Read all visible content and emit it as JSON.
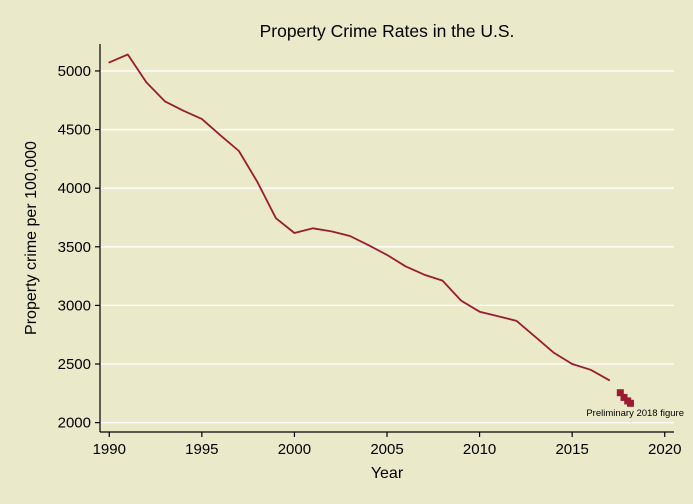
{
  "chart_data": {
    "type": "line",
    "title": "Property Crime Rates in the U.S.",
    "xlabel": "Year",
    "ylabel": "Property crime per 100,000",
    "xlim": [
      1989.5,
      2020.5
    ],
    "ylim": [
      1920,
      5230
    ],
    "xticks": [
      1990,
      1995,
      2000,
      2005,
      2010,
      2015,
      2020
    ],
    "yticks": [
      2000,
      2500,
      3000,
      3500,
      4000,
      4500,
      5000
    ],
    "grid": "horizontal",
    "legend": "none",
    "colors": {
      "background": "#eaeaca",
      "series": "#9b1b30",
      "grid": "#ffffff"
    },
    "series": [
      {
        "x": [
          1990,
          1991,
          1992,
          1993,
          1994,
          1995,
          1996,
          1997,
          1998,
          1999,
          2000,
          2001,
          2002,
          2003,
          2004,
          2005,
          2006,
          2007,
          2008,
          2009,
          2010,
          2011,
          2012,
          2013,
          2014,
          2015,
          2016,
          2017
        ],
        "values": [
          5073,
          5140,
          4903,
          4741,
          4661,
          4591,
          4451,
          4317,
          4053,
          3744,
          3618,
          3658,
          3631,
          3592,
          3514,
          3431,
          3334,
          3263,
          3212,
          3041,
          2946,
          2908,
          2868,
          2733,
          2597,
          2500,
          2451,
          2362
        ]
      }
    ],
    "annotation": {
      "text": "Preliminary 2018 figure",
      "points": [
        {
          "x": 2017.6,
          "y": 2255
        },
        {
          "x": 2017.8,
          "y": 2215
        },
        {
          "x": 2018.0,
          "y": 2185
        },
        {
          "x": 2018.15,
          "y": 2165
        }
      ]
    }
  }
}
